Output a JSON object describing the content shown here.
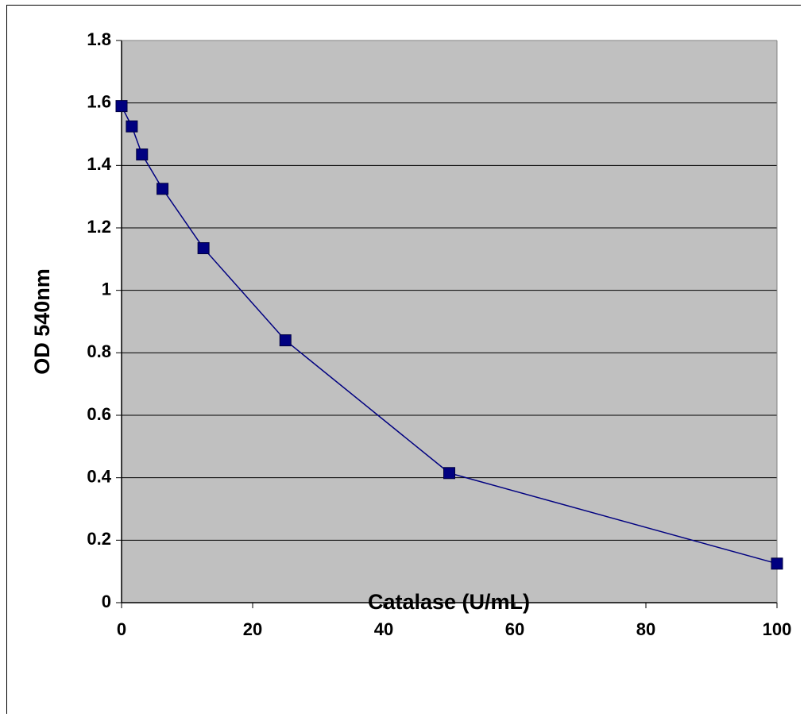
{
  "chart_data": {
    "type": "line",
    "title": "",
    "xlabel": "Catalase (U/mL)",
    "ylabel": "OD 540nm",
    "xlim": [
      0,
      100
    ],
    "ylim": [
      0,
      1.8
    ],
    "x_ticks": [
      "0",
      "20",
      "40",
      "60",
      "80",
      "100"
    ],
    "y_ticks": [
      "0",
      "0.2",
      "0.4",
      "0.6",
      "0.8",
      "1",
      "1.2",
      "1.4",
      "1.6",
      "1.8"
    ],
    "grid": "horizontal",
    "legend": "none",
    "series": [
      {
        "x": [
          0,
          1.5625,
          3.125,
          6.25,
          12.5,
          25,
          50,
          100
        ],
        "y": [
          1.59,
          1.525,
          1.435,
          1.325,
          1.135,
          0.84,
          0.415,
          0.125
        ]
      }
    ],
    "colors": {
      "plot_background": "#C0C0C0",
      "series": "#000080",
      "grid": "#000000"
    },
    "marker": "square"
  }
}
